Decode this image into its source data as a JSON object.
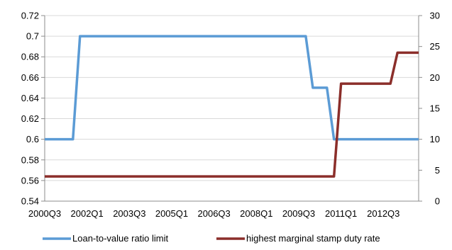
{
  "chart_data": {
    "type": "line",
    "title": "",
    "xlabel": "",
    "ylabel": "",
    "x": [
      "2000Q3",
      "2000Q4",
      "2001Q1",
      "2001Q2",
      "2001Q3",
      "2001Q4",
      "2002Q1",
      "2002Q2",
      "2002Q3",
      "2002Q4",
      "2003Q1",
      "2003Q2",
      "2003Q3",
      "2003Q4",
      "2004Q1",
      "2004Q2",
      "2004Q3",
      "2004Q4",
      "2005Q1",
      "2005Q2",
      "2005Q3",
      "2005Q4",
      "2006Q1",
      "2006Q2",
      "2006Q3",
      "2006Q4",
      "2007Q1",
      "2007Q2",
      "2007Q3",
      "2007Q4",
      "2008Q1",
      "2008Q2",
      "2008Q3",
      "2008Q4",
      "2009Q1",
      "2009Q2",
      "2009Q3",
      "2009Q4",
      "2010Q1",
      "2010Q2",
      "2010Q3",
      "2010Q4",
      "2011Q1",
      "2011Q2",
      "2011Q3",
      "2011Q4",
      "2012Q1",
      "2012Q2",
      "2012Q3",
      "2012Q4",
      "2013Q1",
      "2013Q2",
      "2013Q3",
      "2013Q4"
    ],
    "x_tick_labels": [
      "2000Q3",
      "2002Q1",
      "2003Q3",
      "2005Q1",
      "2006Q3",
      "2008Q1",
      "2009Q3",
      "2011Q1",
      "2012Q3"
    ],
    "y_left": {
      "min": 0.54,
      "max": 0.72,
      "ticks": [
        "0.54",
        "0.56",
        "0.58",
        "0.6",
        "0.62",
        "0.64",
        "0.66",
        "0.68",
        "0.7",
        "0.72"
      ]
    },
    "y_right": {
      "min": 0,
      "max": 30,
      "ticks": [
        "0",
        "5",
        "10",
        "15",
        "20",
        "25",
        "30"
      ]
    },
    "grid": "horizontal",
    "legend_position": "bottom",
    "series": [
      {
        "name": "Loan-to-value ratio limit",
        "axis": "left",
        "color": "#5B9BD5",
        "values": [
          0.6,
          0.6,
          0.6,
          0.6,
          0.6,
          0.7,
          0.7,
          0.7,
          0.7,
          0.7,
          0.7,
          0.7,
          0.7,
          0.7,
          0.7,
          0.7,
          0.7,
          0.7,
          0.7,
          0.7,
          0.7,
          0.7,
          0.7,
          0.7,
          0.7,
          0.7,
          0.7,
          0.7,
          0.7,
          0.7,
          0.7,
          0.7,
          0.7,
          0.7,
          0.7,
          0.7,
          0.7,
          0.7,
          0.65,
          0.65,
          0.65,
          0.6,
          0.6,
          0.6,
          0.6,
          0.6,
          0.6,
          0.6,
          0.6,
          0.6,
          0.6,
          0.6,
          0.6,
          0.6
        ]
      },
      {
        "name": "highest marginal stamp duty rate",
        "axis": "right",
        "color": "#8B2E2A",
        "values": [
          4,
          4,
          4,
          4,
          4,
          4,
          4,
          4,
          4,
          4,
          4,
          4,
          4,
          4,
          4,
          4,
          4,
          4,
          4,
          4,
          4,
          4,
          4,
          4,
          4,
          4,
          4,
          4,
          4,
          4,
          4,
          4,
          4,
          4,
          4,
          4,
          4,
          4,
          4,
          4,
          4,
          4,
          19,
          19,
          19,
          19,
          19,
          19,
          19,
          19,
          24,
          24,
          24,
          24
        ]
      }
    ]
  }
}
